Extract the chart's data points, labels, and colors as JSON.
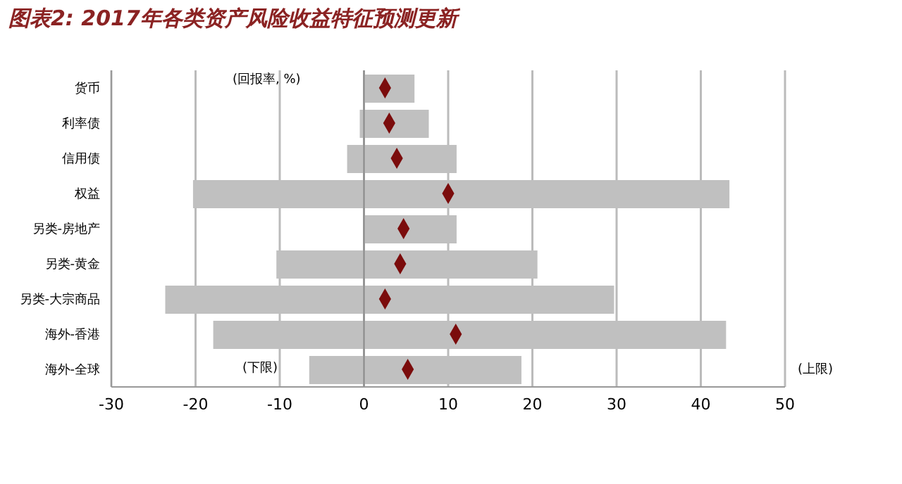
{
  "chart_data": {
    "type": "bar",
    "orientation": "horizontal",
    "title": "图表2: 2017年各类资产风险收益特征预测更新",
    "categories": [
      "货币",
      "利率债",
      "信用债",
      "权益",
      "另类-房地产",
      "另类-黄金",
      "另类-大宗商品",
      "海外-香港",
      "海外-全球"
    ],
    "series": [
      {
        "color": "#c0c0c0",
        "base": [
          0,
          -0.5,
          -2,
          -20.3,
          0,
          -10.4,
          -23.6,
          -17.9,
          -6.5
        ],
        "values": [
          6,
          8.2,
          13,
          63.7,
          11,
          31,
          53.3,
          60.9,
          25.2
        ]
      },
      {
        "type": "scatter",
        "color": "#7b0c0c",
        "values": [
          2.5,
          3,
          3.9,
          10,
          4.7,
          4.3,
          2.5,
          10.9,
          5.2
        ]
      }
    ],
    "marker": "diamond",
    "xlim": [
      -30,
      50
    ],
    "xticks": [
      -30,
      -20,
      -10,
      0,
      10,
      20,
      30,
      40,
      50
    ],
    "grid": "x",
    "annotations": [
      "(回报率, %)",
      "(下限)",
      "(上限)"
    ]
  }
}
